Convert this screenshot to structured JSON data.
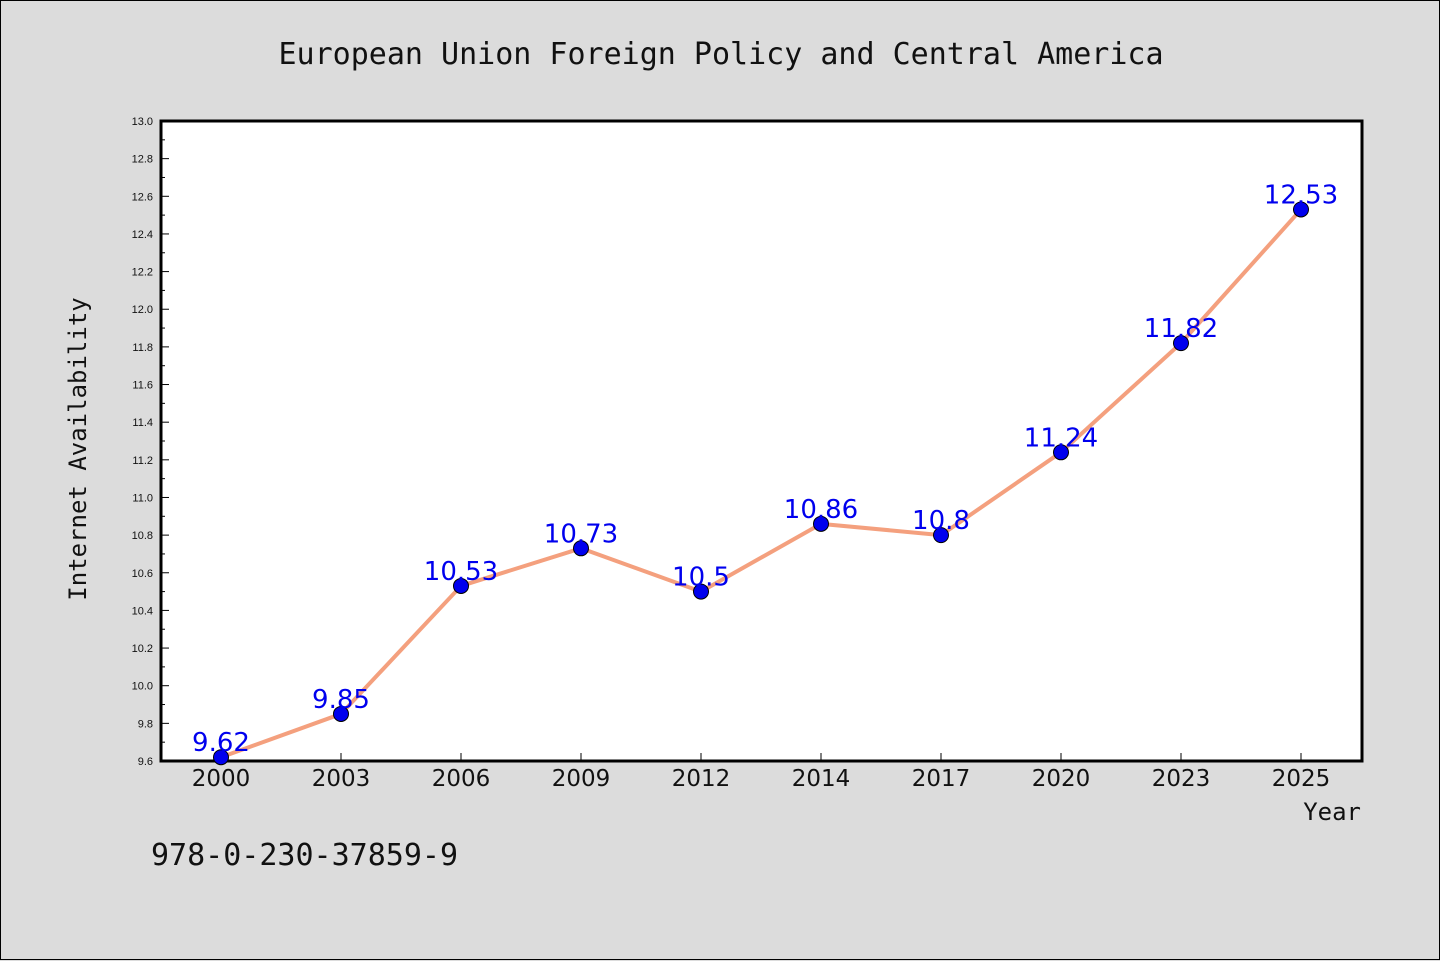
{
  "chart_data": {
    "type": "line",
    "title": "European Union Foreign Policy and Central America",
    "xlabel": "Year",
    "ylabel": "Internet Availability",
    "categories": [
      "2000",
      "2003",
      "2006",
      "2009",
      "2012",
      "2014",
      "2017",
      "2020",
      "2023",
      "2025"
    ],
    "series": [
      {
        "values": [
          9.62,
          9.85,
          10.53,
          10.73,
          10.5,
          10.86,
          10.8,
          11.24,
          11.82,
          12.53
        ],
        "labels": [
          "9.62",
          "9.85",
          "10.53",
          "10.73",
          "10.5",
          "10.86",
          "10.8",
          "11.24",
          "11.82",
          "12.53"
        ],
        "line_color": "#f4a07e",
        "marker_color": "#0000ee"
      }
    ],
    "ylim": [
      9.6,
      13.0
    ],
    "yticks": [
      "9.6",
      "9.8",
      "10.0",
      "10.2",
      "10.4",
      "10.6",
      "10.8",
      "11.0",
      "11.2",
      "11.4",
      "11.6",
      "11.8",
      "12.0",
      "12.2",
      "12.4",
      "12.6",
      "12.8",
      "13.0"
    ],
    "grid": false,
    "legend": "none"
  },
  "footer": {
    "isbn": "978-0-230-37859-9"
  }
}
